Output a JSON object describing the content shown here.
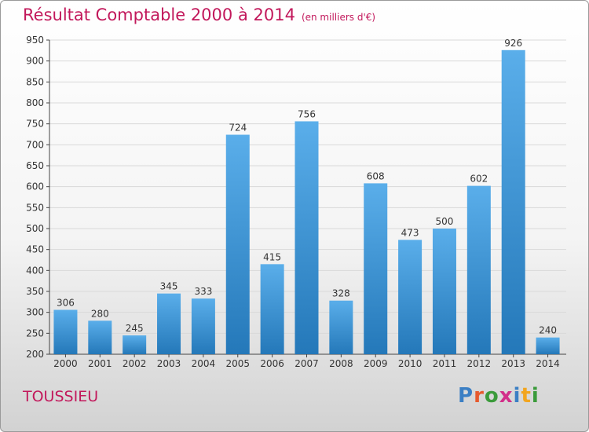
{
  "header": {
    "title": "Résultat Comptable 2000 à 2014",
    "subtitle": "(en milliers d'€)"
  },
  "footer": {
    "commune": "TOUSSIEU",
    "logo": [
      "P",
      "r",
      "o",
      "x",
      "i",
      "t",
      "i"
    ]
  },
  "colors": {
    "title": "#c2185b",
    "bar_top": "#5aaeea",
    "bar_bottom": "#2478b9",
    "logo": [
      "#3b7fc4",
      "#e65a2e",
      "#3b9b3b",
      "#d22f8a",
      "#3b7fc4",
      "#f2a51f",
      "#3b9b3b"
    ]
  },
  "chart_data": {
    "type": "bar",
    "categories": [
      "2000",
      "2001",
      "2002",
      "2003",
      "2004",
      "2005",
      "2006",
      "2007",
      "2008",
      "2009",
      "2010",
      "2011",
      "2012",
      "2013",
      "2014"
    ],
    "values": [
      306,
      280,
      245,
      345,
      333,
      724,
      415,
      756,
      328,
      608,
      473,
      500,
      602,
      926,
      240
    ],
    "title": "Résultat Comptable 2000 à 2014",
    "ylim": [
      200,
      950
    ],
    "yticks": [
      200,
      250,
      300,
      350,
      400,
      450,
      500,
      550,
      600,
      650,
      700,
      750,
      800,
      850,
      900,
      950
    ],
    "grid": true,
    "legend": "none"
  }
}
